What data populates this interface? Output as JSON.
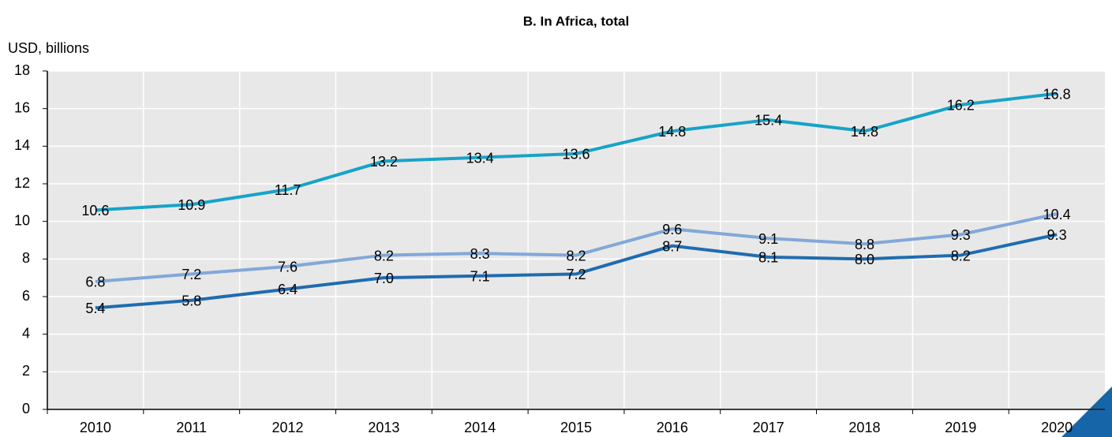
{
  "chart_data": {
    "type": "line",
    "title": "B. In Africa, total",
    "y_label": "USD, billions",
    "categories": [
      "2010",
      "2011",
      "2012",
      "2013",
      "2014",
      "2015",
      "2016",
      "2017",
      "2018",
      "2019",
      "2020"
    ],
    "series": [
      {
        "color": "#17a3c8",
        "values": [
          10.6,
          10.9,
          11.7,
          13.2,
          13.4,
          13.6,
          14.8,
          15.4,
          14.8,
          16.2,
          16.8
        ]
      },
      {
        "color": "#82a8d8",
        "values": [
          6.8,
          7.2,
          7.6,
          8.2,
          8.3,
          8.2,
          9.6,
          9.1,
          8.8,
          9.3,
          10.4
        ]
      },
      {
        "color": "#1f6cb0",
        "values": [
          5.4,
          5.8,
          6.4,
          7.0,
          7.1,
          7.2,
          8.7,
          8.1,
          8.0,
          8.2,
          9.3
        ],
        "value_labels": [
          "5.4",
          "5.8",
          "6.4",
          "7.0",
          "7.1",
          "7.2",
          "8.7",
          "8.1",
          "8.0",
          "8.2",
          "9.3"
        ]
      }
    ],
    "ylim": [
      0,
      18
    ],
    "yticks": [
      0,
      2,
      4,
      6,
      8,
      10,
      12,
      14,
      16,
      18
    ],
    "grid": true
  }
}
